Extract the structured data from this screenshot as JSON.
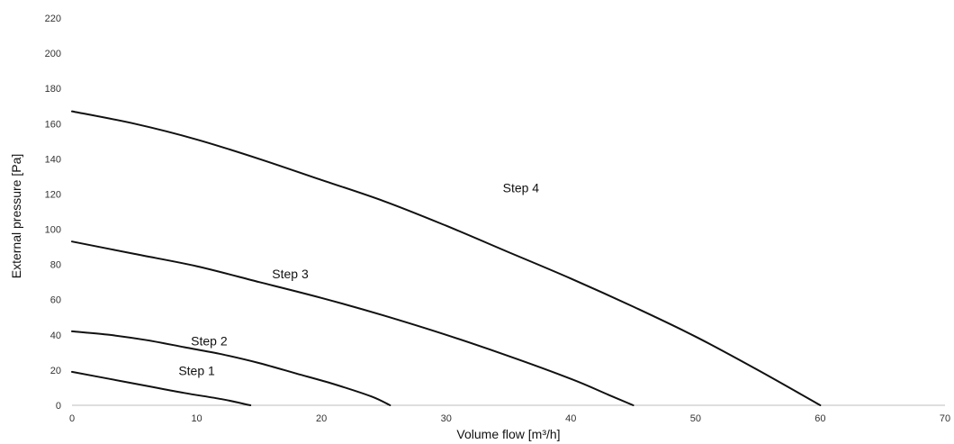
{
  "chart_data": {
    "type": "line",
    "title": "",
    "xlabel": "Volume flow [m³/h]",
    "ylabel": "External pressure [Pa]",
    "xlim": [
      0,
      70
    ],
    "ylim": [
      0,
      220
    ],
    "xticks": [
      0,
      10,
      20,
      30,
      40,
      50,
      60,
      70
    ],
    "yticks": [
      0,
      20,
      40,
      60,
      80,
      100,
      120,
      140,
      160,
      180,
      200,
      220
    ],
    "grid": false,
    "legend": "none",
    "line_color": "#111111",
    "series": [
      {
        "name": "Step 1",
        "label": {
          "x": 10,
          "y": 14
        },
        "points": [
          [
            0,
            19
          ],
          [
            3,
            15
          ],
          [
            6,
            11
          ],
          [
            9,
            7
          ],
          [
            12,
            3.5
          ],
          [
            14.3,
            0
          ]
        ]
      },
      {
        "name": "Step 2",
        "label": {
          "x": 11,
          "y": 31
        },
        "points": [
          [
            0,
            42
          ],
          [
            3,
            40
          ],
          [
            6,
            37
          ],
          [
            9,
            33
          ],
          [
            12,
            29
          ],
          [
            15,
            24
          ],
          [
            18,
            18
          ],
          [
            21,
            12
          ],
          [
            24,
            5
          ],
          [
            25.5,
            0
          ]
        ]
      },
      {
        "name": "Step 3",
        "label": {
          "x": 17.5,
          "y": 69
        },
        "points": [
          [
            0,
            93
          ],
          [
            5,
            86
          ],
          [
            10,
            79
          ],
          [
            15,
            70
          ],
          [
            20,
            61
          ],
          [
            25,
            51
          ],
          [
            30,
            40
          ],
          [
            35,
            28
          ],
          [
            40,
            15
          ],
          [
            43,
            6
          ],
          [
            45,
            0
          ]
        ]
      },
      {
        "name": "Step 4",
        "label": {
          "x": 36,
          "y": 118
        },
        "points": [
          [
            0,
            167
          ],
          [
            5,
            160
          ],
          [
            10,
            151
          ],
          [
            15,
            140
          ],
          [
            20,
            128
          ],
          [
            25,
            116
          ],
          [
            30,
            102
          ],
          [
            35,
            87
          ],
          [
            40,
            72
          ],
          [
            45,
            56
          ],
          [
            50,
            39
          ],
          [
            55,
            20
          ],
          [
            60,
            0
          ]
        ]
      }
    ]
  }
}
